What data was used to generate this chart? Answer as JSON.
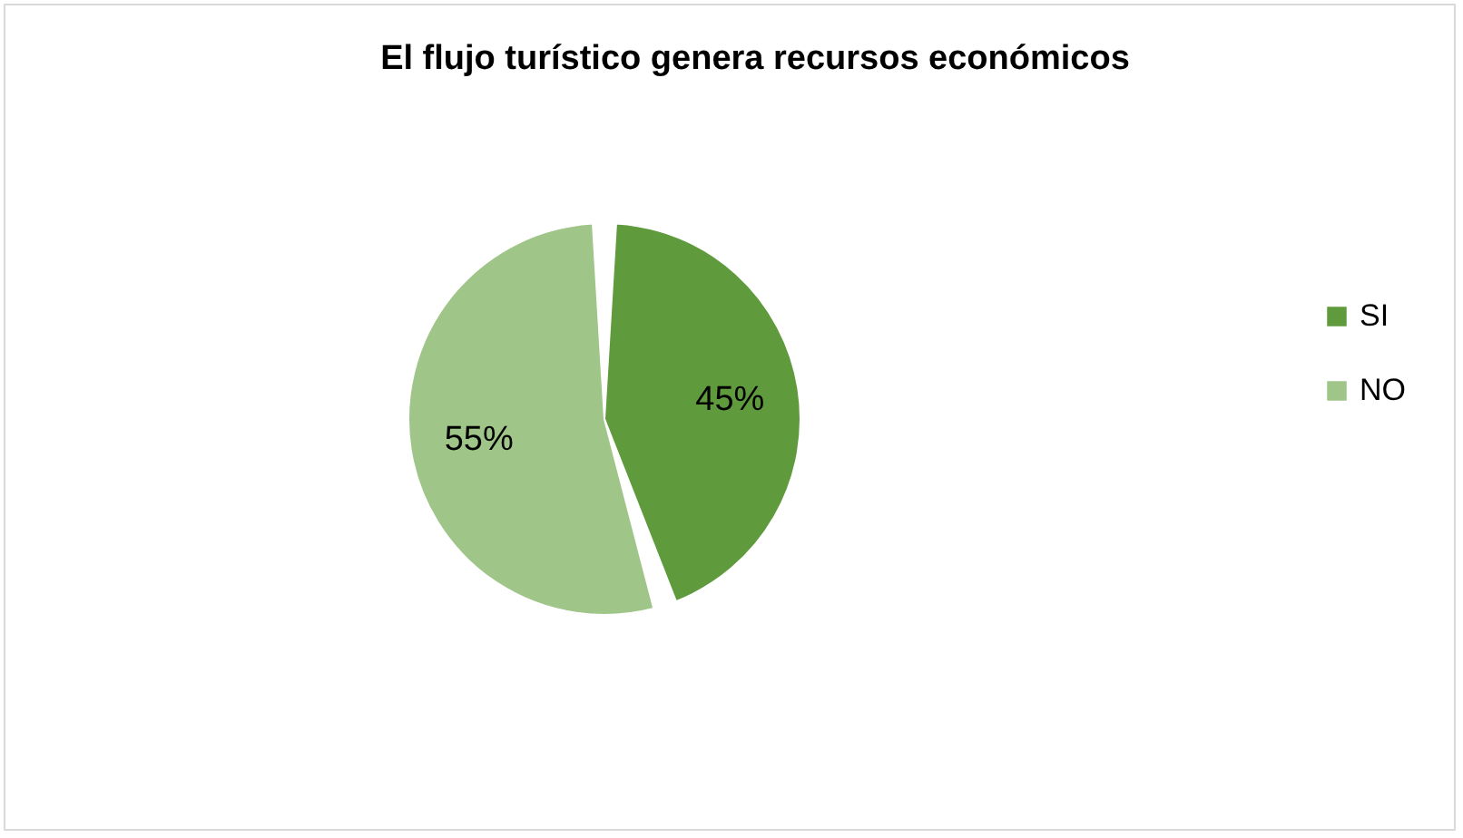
{
  "chart_data": {
    "type": "pie",
    "title": "El flujo turístico genera recursos económicos",
    "categories": [
      "SI",
      "NO"
    ],
    "values": [
      45,
      55
    ],
    "colors": [
      "#5f9a3c",
      "#9fc589"
    ],
    "value_labels": [
      "45%",
      "55%"
    ],
    "legend": "right"
  }
}
